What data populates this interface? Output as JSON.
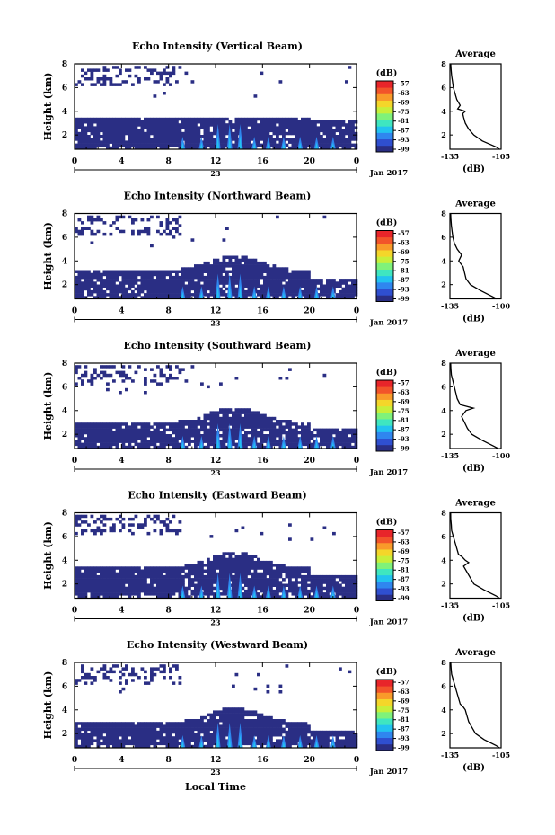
{
  "date_label": "Jan 2017",
  "xaxis_title": "Local Time",
  "colorbar": {
    "unit_label": "(dB)",
    "tick_labels": [
      "-57",
      "-63",
      "-69",
      "-75",
      "-81",
      "-87",
      "-93",
      "-99"
    ],
    "colors": [
      "#2a2e84",
      "#2f4fd0",
      "#2f86ef",
      "#22c3f0",
      "#3fe6c0",
      "#7ff27a",
      "#c8ef3a",
      "#f4d62a",
      "#f99a2a",
      "#f2542a",
      "#e8252a"
    ]
  },
  "panels": [
    {
      "title": "Echo Intensity (Vertical Beam)",
      "ylabel": "Height (km)",
      "avg_title": "Average",
      "avg_xticks": [
        "-135",
        "-105"
      ],
      "avg_xlabel": "(dB)"
    },
    {
      "title": "Echo Intensity (Northward Beam)",
      "ylabel": "Height (km)",
      "avg_title": "Average",
      "avg_xticks": [
        "-135",
        "-100"
      ],
      "avg_xlabel": "(dB)"
    },
    {
      "title": "Echo Intensity (Southward Beam)",
      "ylabel": "Height (km)",
      "avg_title": "Average",
      "avg_xticks": [
        "-135",
        "-100"
      ],
      "avg_xlabel": "(dB)"
    },
    {
      "title": "Echo Intensity (Eastward Beam)",
      "ylabel": "Height (km)",
      "avg_title": "Average",
      "avg_xticks": [
        "-135",
        "-105"
      ],
      "avg_xlabel": "(dB)"
    },
    {
      "title": "Echo Intensity (Westward Beam)",
      "ylabel": "Height (km)",
      "avg_title": "Average",
      "avg_xticks": [
        "-135",
        "-105"
      ],
      "avg_xlabel": "(dB)"
    }
  ],
  "chart_data": [
    {
      "type": "heatmap",
      "title": "Echo Intensity (Vertical Beam)",
      "ylabel": "Height (km)",
      "x_ticks": [
        "0",
        "4",
        "8",
        "12",
        "16",
        "20",
        "0"
      ],
      "x_day": "23",
      "y_ticks": [
        "2",
        "4",
        "6",
        "8"
      ],
      "xlim": [
        0,
        24
      ],
      "ylim": [
        0.8,
        8.0
      ],
      "colorbar_range": [
        -99,
        -57
      ],
      "profile": {
        "title": "Average",
        "xlabel": "(dB)",
        "xlim": [
          -135,
          -105
        ],
        "ylim": [
          0.8,
          8
        ],
        "height": [
          0.8,
          1.0,
          1.5,
          2.0,
          2.5,
          3.0,
          3.5,
          3.8,
          4.0,
          4.2,
          4.5,
          5.0,
          5.5,
          6.0,
          6.5,
          7.0,
          7.5,
          8.0
        ],
        "value": [
          -106,
          -108,
          -116,
          -121,
          -124,
          -126,
          -127,
          -127.5,
          -126,
          -130.5,
          -129,
          -131,
          -132,
          -133,
          -133.5,
          -134,
          -134.3,
          -134.5
        ]
      }
    },
    {
      "type": "heatmap",
      "title": "Echo Intensity (Northward Beam)",
      "ylabel": "Height (km)",
      "x_ticks": [
        "0",
        "4",
        "8",
        "12",
        "16",
        "20",
        "0"
      ],
      "x_day": "23",
      "y_ticks": [
        "2",
        "4",
        "6",
        "8"
      ],
      "xlim": [
        0,
        24
      ],
      "ylim": [
        0.8,
        8.0
      ],
      "colorbar_range": [
        -99,
        -57
      ],
      "profile": {
        "title": "Average",
        "xlabel": "(dB)",
        "xlim": [
          -135,
          -100
        ],
        "ylim": [
          0.8,
          8
        ],
        "height": [
          0.8,
          1.0,
          1.5,
          2.0,
          2.5,
          3.0,
          3.5,
          4.0,
          4.5,
          5.0,
          5.5,
          6.0,
          6.5,
          7.0,
          7.5,
          8.0
        ],
        "value": [
          -103,
          -106,
          -114,
          -121,
          -124,
          -125,
          -126,
          -129,
          -127,
          -130,
          -132,
          -133,
          -133.5,
          -134,
          -134.3,
          -134.5
        ]
      }
    },
    {
      "type": "heatmap",
      "title": "Echo Intensity (Southward Beam)",
      "ylabel": "Height (km)",
      "x_ticks": [
        "0",
        "4",
        "8",
        "12",
        "16",
        "20",
        "0"
      ],
      "x_day": "23",
      "y_ticks": [
        "2",
        "4",
        "6",
        "8"
      ],
      "xlim": [
        0,
        24
      ],
      "ylim": [
        0.8,
        8.0
      ],
      "colorbar_range": [
        -99,
        -57
      ],
      "profile": {
        "title": "Average",
        "xlabel": "(dB)",
        "xlim": [
          -135,
          -100
        ],
        "ylim": [
          0.8,
          8
        ],
        "height": [
          0.8,
          1.0,
          1.5,
          2.0,
          2.5,
          3.0,
          3.5,
          4.0,
          4.2,
          4.5,
          5.0,
          5.5,
          6.0,
          6.5,
          7.0,
          7.5,
          8.0
        ],
        "value": [
          -102,
          -105,
          -113,
          -120,
          -123,
          -125,
          -127,
          -124,
          -119,
          -128,
          -130,
          -131,
          -132,
          -133,
          -134,
          -134.3,
          -134.5
        ]
      }
    },
    {
      "type": "heatmap",
      "title": "Echo Intensity (Eastward Beam)",
      "ylabel": "Height (km)",
      "x_ticks": [
        "0",
        "4",
        "8",
        "12",
        "16",
        "20",
        "0"
      ],
      "x_day": "23",
      "y_ticks": [
        "2",
        "4",
        "6",
        "8"
      ],
      "xlim": [
        0,
        24
      ],
      "ylim": [
        0.8,
        8.0
      ],
      "colorbar_range": [
        -99,
        -57
      ],
      "profile": {
        "title": "Average",
        "xlabel": "(dB)",
        "xlim": [
          -135,
          -105
        ],
        "ylim": [
          0.8,
          8
        ],
        "height": [
          0.8,
          1.0,
          1.5,
          2.0,
          2.5,
          3.0,
          3.5,
          3.8,
          4.0,
          4.3,
          4.5,
          5.0,
          5.5,
          6.0,
          6.5,
          7.0,
          7.5,
          8.0
        ],
        "value": [
          -106,
          -108,
          -115,
          -121,
          -123,
          -125,
          -127,
          -124,
          -126,
          -128,
          -130,
          -131,
          -132,
          -133,
          -134,
          -134.2,
          -134.5,
          -134.6
        ]
      }
    },
    {
      "type": "heatmap",
      "title": "Echo Intensity (Westward Beam)",
      "ylabel": "Height (km)",
      "x_ticks": [
        "0",
        "4",
        "8",
        "12",
        "16",
        "20",
        "0"
      ],
      "x_day": "23",
      "y_ticks": [
        "2",
        "4",
        "6",
        "8"
      ],
      "xlim": [
        0,
        24
      ],
      "ylim": [
        0.8,
        8.0
      ],
      "colorbar_range": [
        -99,
        -57
      ],
      "profile": {
        "title": "Average",
        "xlabel": "(dB)",
        "xlim": [
          -135,
          -105
        ],
        "ylim": [
          0.8,
          8
        ],
        "height": [
          0.8,
          1.0,
          1.5,
          2.0,
          2.5,
          3.0,
          3.5,
          4.0,
          4.2,
          4.5,
          5.0,
          5.5,
          6.0,
          6.5,
          7.0,
          7.5,
          8.0
        ],
        "value": [
          -106,
          -108,
          -115,
          -120,
          -122,
          -124,
          -125,
          -126,
          -127,
          -129,
          -130,
          -131,
          -132,
          -133,
          -134,
          -134.3,
          -134.5
        ]
      }
    }
  ]
}
